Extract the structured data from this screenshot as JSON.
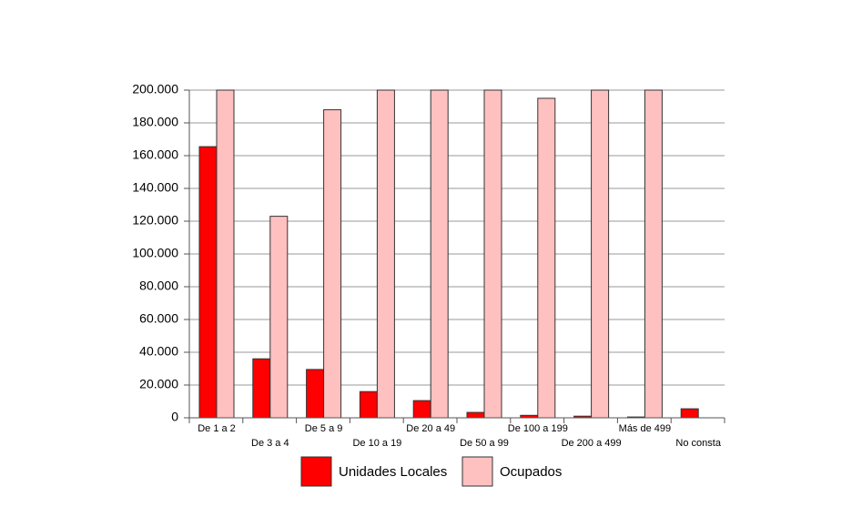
{
  "chart_data": {
    "type": "bar",
    "categories": [
      "De 1 a 2",
      "De 3 a 4",
      "De 5 a 9",
      "De 10 a 19",
      "De 20 a 49",
      "De 50 a 99",
      "De 100 a 199",
      "De 200 a 499",
      "Más de 499",
      "No consta"
    ],
    "series": [
      {
        "name": "Unidades Locales",
        "color": "#ff0000",
        "values": [
          165500,
          36000,
          29500,
          16000,
          10500,
          3300,
          1500,
          1000,
          500,
          5500
        ]
      },
      {
        "name": "Ocupados",
        "color": "#ffc0c0",
        "values": [
          200000,
          123000,
          188000,
          200000,
          200000,
          200000,
          195000,
          200000,
          200000,
          0
        ]
      }
    ],
    "ylim": [
      0,
      200000
    ],
    "yticks": [
      0,
      {
        "value": 20000,
        "label": "20.000"
      },
      {
        "value": 40000,
        "label": "40.000"
      },
      {
        "value": 60000,
        "label": "60.000"
      },
      {
        "value": 80000,
        "label": "80.000"
      },
      {
        "value": 100000,
        "label": "100.000"
      },
      {
        "value": 120000,
        "label": "120.000"
      },
      {
        "value": 140000,
        "label": "140.000"
      },
      {
        "value": 160000,
        "label": "160.000"
      },
      {
        "value": 180000,
        "label": "180.000"
      },
      {
        "value": 200000,
        "label": "200.000"
      }
    ],
    "grid": true,
    "legend": "bottom"
  }
}
